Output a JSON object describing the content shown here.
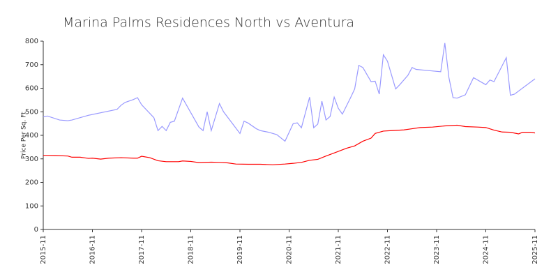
{
  "chart_data": {
    "type": "line",
    "title": "Marina Palms Residences North vs Aventura",
    "ylabel": "Price Per Sq. Ft",
    "xlim": [
      "2015-11",
      "2025-11"
    ],
    "xticks": [
      "2015-11",
      "2016-11",
      "2017-11",
      "2018-11",
      "2019-11",
      "2020-11",
      "2021-11",
      "2022-11",
      "2023-11",
      "2024-11",
      "2025-11"
    ],
    "ylim": [
      0,
      800
    ],
    "yticks": [
      0,
      100,
      200,
      300,
      400,
      500,
      600,
      700,
      800
    ],
    "series": [
      {
        "color": "#9999ff",
        "x": [
          "2015-11",
          "2015-12",
          "2016-03",
          "2016-05",
          "2016-06",
          "2016-10",
          "2017-05",
          "2017-06",
          "2017-07",
          "2017-09",
          "2017-10",
          "2017-11",
          "2018-02",
          "2018-03",
          "2018-04",
          "2018-05",
          "2018-06",
          "2018-07",
          "2018-09",
          "2019-01",
          "2019-02",
          "2019-03",
          "2019-04",
          "2019-06",
          "2019-07",
          "2019-11",
          "2019-12",
          "2020-01",
          "2020-03",
          "2020-04",
          "2020-06",
          "2020-08",
          "2020-10",
          "2020-12",
          "2021-01",
          "2021-02",
          "2021-04",
          "2021-05",
          "2021-06",
          "2021-07",
          "2021-08",
          "2021-09",
          "2021-10",
          "2021-11",
          "2021-12",
          "2022-02",
          "2022-03",
          "2022-04",
          "2022-05",
          "2022-07",
          "2022-08",
          "2022-09",
          "2022-10",
          "2022-11",
          "2023-01",
          "2023-02",
          "2023-04",
          "2023-05",
          "2023-06",
          "2023-09",
          "2023-12",
          "2024-01",
          "2024-02",
          "2024-03",
          "2024-04",
          "2024-06",
          "2024-08",
          "2024-11",
          "2024-12",
          "2025-01",
          "2025-04",
          "2025-05",
          "2025-06",
          "2025-11"
        ],
        "values": [
          478,
          482,
          465,
          462,
          465,
          485,
          510,
          528,
          540,
          552,
          560,
          530,
          475,
          420,
          438,
          420,
          455,
          460,
          558,
          435,
          420,
          500,
          420,
          535,
          500,
          408,
          460,
          452,
          428,
          420,
          413,
          403,
          375,
          450,
          453,
          432,
          562,
          432,
          448,
          545,
          465,
          480,
          562,
          515,
          490,
          560,
          597,
          697,
          688,
          628,
          630,
          575,
          742,
          715,
          597,
          615,
          655,
          688,
          680,
          675,
          670,
          792,
          645,
          560,
          558,
          572,
          645,
          615,
          635,
          628,
          730,
          570,
          575,
          640
        ]
      },
      {
        "color": "#ff0000",
        "x": [
          "2015-11",
          "2016-02",
          "2016-05",
          "2016-06",
          "2016-08",
          "2016-10",
          "2016-11",
          "2017-01",
          "2017-03",
          "2017-06",
          "2017-09",
          "2017-10",
          "2017-11",
          "2018-01",
          "2018-03",
          "2018-05",
          "2018-08",
          "2018-09",
          "2018-11",
          "2019-01",
          "2019-04",
          "2019-06",
          "2019-08",
          "2019-10",
          "2020-01",
          "2020-04",
          "2020-07",
          "2020-10",
          "2020-12",
          "2021-02",
          "2021-04",
          "2021-06",
          "2021-08",
          "2021-10",
          "2022-01",
          "2022-03",
          "2022-05",
          "2022-07",
          "2022-08",
          "2022-10",
          "2022-12",
          "2023-03",
          "2023-05",
          "2023-07",
          "2023-10",
          "2024-01",
          "2024-04",
          "2024-06",
          "2024-09",
          "2024-11",
          "2025-01",
          "2025-03",
          "2025-05",
          "2025-07",
          "2025-08",
          "2025-10",
          "2025-11"
        ],
        "values": [
          315,
          314,
          312,
          307,
          307,
          302,
          303,
          299,
          303,
          305,
          303,
          303,
          311,
          305,
          292,
          288,
          288,
          291,
          289,
          284,
          286,
          285,
          283,
          278,
          277,
          277,
          275,
          278,
          281,
          285,
          294,
          298,
          312,
          325,
          345,
          355,
          375,
          388,
          408,
          418,
          420,
          423,
          428,
          433,
          435,
          440,
          443,
          437,
          435,
          433,
          422,
          414,
          413,
          406,
          413,
          413,
          410
        ]
      }
    ]
  }
}
